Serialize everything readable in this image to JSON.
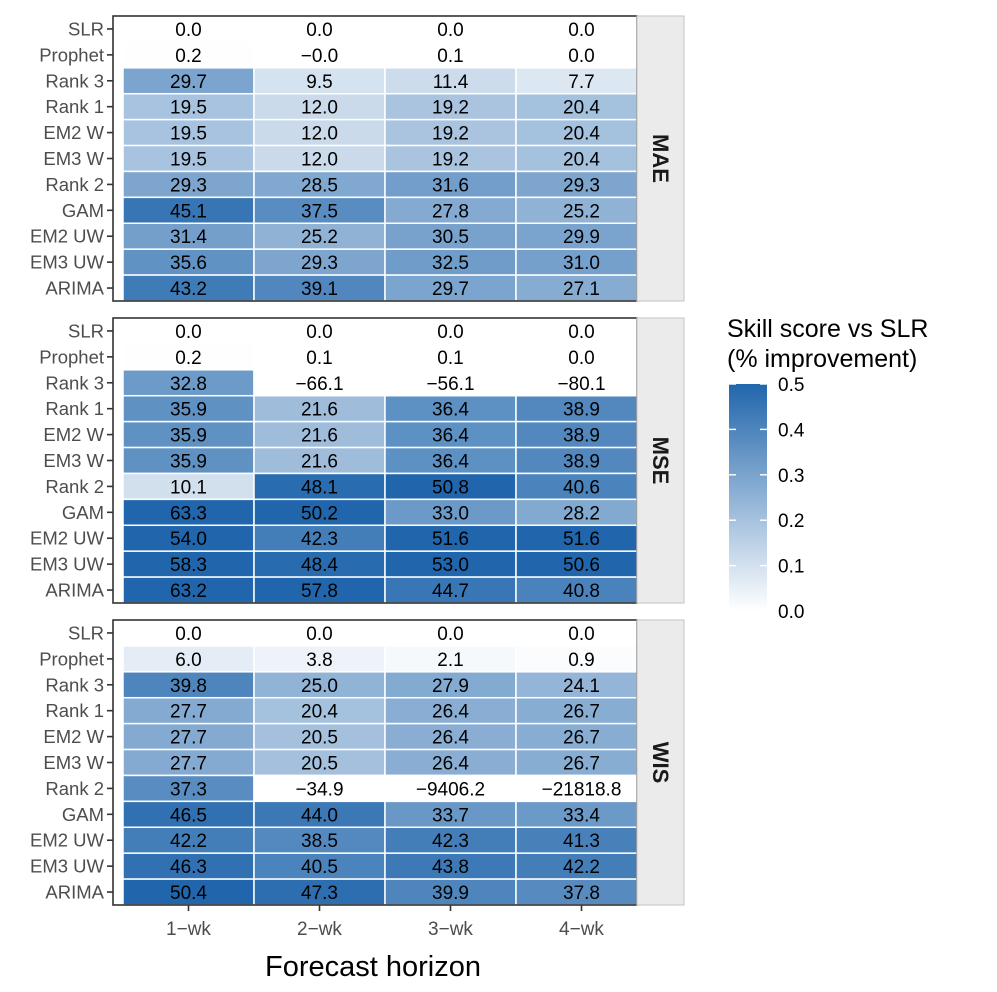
{
  "chart_data": {
    "type": "heatmap",
    "xlabel": "Forecast horizon",
    "x_categories": [
      "1−wk",
      "2−wk",
      "3−wk",
      "4−wk"
    ],
    "y_categories": [
      "SLR",
      "Prophet",
      "Rank 3",
      "Rank 1",
      "EM2 W",
      "EM3 W",
      "Rank 2",
      "GAM",
      "EM2 UW",
      "EM3 UW",
      "ARIMA"
    ],
    "legend": {
      "title_line1": "Skill score vs SLR",
      "title_line2": "(% improvement)",
      "ticks": [
        0.5,
        0.4,
        0.3,
        0.2,
        0.1,
        0.0
      ],
      "tick_labels": [
        "0.5",
        "0.4",
        "0.3",
        "0.2",
        "0.1",
        "0.0"
      ],
      "min": 0.0,
      "max": 0.5,
      "color_low": "#ffffff",
      "color_high": "#2166ac",
      "placement": "right"
    },
    "panels": [
      {
        "metric": "MAE",
        "labels": [
          [
            "0.0",
            "0.0",
            "0.0",
            "0.0"
          ],
          [
            "0.2",
            "−0.0",
            "0.1",
            "0.0"
          ],
          [
            "29.7",
            "9.5",
            "11.4",
            "7.7"
          ],
          [
            "19.5",
            "12.0",
            "19.2",
            "20.4"
          ],
          [
            "19.5",
            "12.0",
            "19.2",
            "20.4"
          ],
          [
            "19.5",
            "12.0",
            "19.2",
            "20.4"
          ],
          [
            "29.3",
            "28.5",
            "31.6",
            "29.3"
          ],
          [
            "45.1",
            "37.5",
            "27.8",
            "25.2"
          ],
          [
            "31.4",
            "25.2",
            "30.5",
            "29.9"
          ],
          [
            "35.6",
            "29.3",
            "32.5",
            "31.0"
          ],
          [
            "43.2",
            "39.1",
            "29.7",
            "27.1"
          ]
        ]
      },
      {
        "metric": "MSE",
        "labels": [
          [
            "0.0",
            "0.0",
            "0.0",
            "0.0"
          ],
          [
            "0.2",
            "0.1",
            "0.1",
            "0.0"
          ],
          [
            "32.8",
            "−66.1",
            "−56.1",
            "−80.1"
          ],
          [
            "35.9",
            "21.6",
            "36.4",
            "38.9"
          ],
          [
            "35.9",
            "21.6",
            "36.4",
            "38.9"
          ],
          [
            "35.9",
            "21.6",
            "36.4",
            "38.9"
          ],
          [
            "10.1",
            "48.1",
            "50.8",
            "40.6"
          ],
          [
            "63.3",
            "50.2",
            "33.0",
            "28.2"
          ],
          [
            "54.0",
            "42.3",
            "51.6",
            "51.6"
          ],
          [
            "58.3",
            "48.4",
            "53.0",
            "50.6"
          ],
          [
            "63.2",
            "57.8",
            "44.7",
            "40.8"
          ]
        ]
      },
      {
        "metric": "WIS",
        "labels": [
          [
            "0.0",
            "0.0",
            "0.0",
            "0.0"
          ],
          [
            "6.0",
            "3.8",
            "2.1",
            "0.9"
          ],
          [
            "39.8",
            "25.0",
            "27.9",
            "24.1"
          ],
          [
            "27.7",
            "20.4",
            "26.4",
            "26.7"
          ],
          [
            "27.7",
            "20.5",
            "26.4",
            "26.7"
          ],
          [
            "27.7",
            "20.5",
            "26.4",
            "26.7"
          ],
          [
            "37.3",
            "−34.9",
            "−9406.2",
            "−21818.8"
          ],
          [
            "46.5",
            "44.0",
            "33.7",
            "33.4"
          ],
          [
            "42.2",
            "38.5",
            "42.3",
            "41.3"
          ],
          [
            "46.3",
            "40.5",
            "43.8",
            "42.2"
          ],
          [
            "50.4",
            "47.3",
            "39.9",
            "37.8"
          ]
        ]
      }
    ]
  }
}
